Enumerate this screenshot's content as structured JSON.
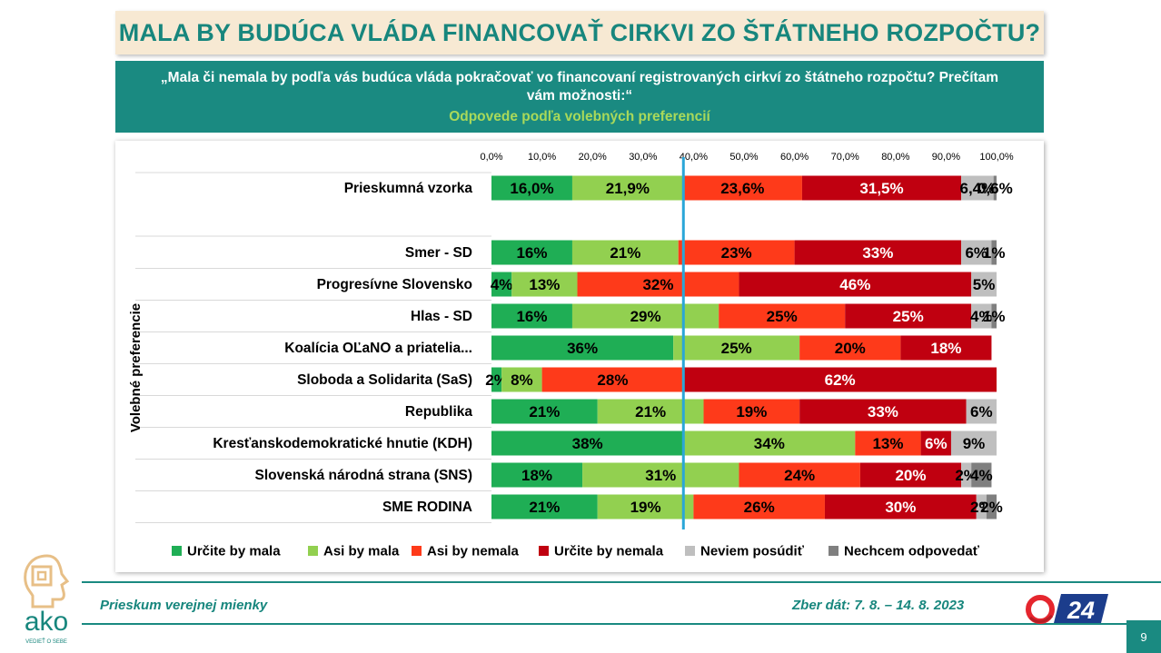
{
  "header": {
    "title": "MALA BY BUDÚCA VLÁDA FINANCOVAŤ CIRKVI ZO ŠTÁTNEHO ROZPOČTU?",
    "question": "„Mala či nemala by podľa vás budúca vláda pokračovať vo financovaní registrovaných cirkví zo štátneho rozpočtu? Prečítam vám možnosti:“",
    "subtitle": "Odpovede podľa volebných preferencií"
  },
  "footer": {
    "left": "Prieskum verejnej mienky",
    "right": "Zber dát: 7. 8. – 14. 8. 2023",
    "page": "9",
    "logo_sub": "VEDIEŤ O SEBE",
    "brand": "ako",
    "channel_number": "24"
  },
  "colors": {
    "accent_teal": "#1a8a81",
    "title_bg": "#f7e9d3",
    "subtitle_green": "#a9d95a",
    "separator_line": "#2aa6d8"
  },
  "chart_data": {
    "type": "bar",
    "orientation": "horizontal",
    "stacked": true,
    "title": "MALA BY BUDÚCA VLÁDA FINANCOVAŤ CIRKVI ZO ŠTÁTNEHO ROZPOČTU?",
    "group_label": "Volebné preferencie",
    "xlim": [
      0,
      100
    ],
    "x_ticks": [
      "0,0%",
      "10,0%",
      "20,0%",
      "30,0%",
      "40,0%",
      "50,0%",
      "60,0%",
      "70,0%",
      "80,0%",
      "90,0%",
      "100,0%"
    ],
    "reference_line_x": 38.0,
    "legend_position": "bottom",
    "series": [
      {
        "name": "Určite by mala",
        "color": "#1fae55"
      },
      {
        "name": "Asi by mala",
        "color": "#92d050"
      },
      {
        "name": "Asi by nemala",
        "color": "#fe3a1a"
      },
      {
        "name": "Určite by nemala",
        "color": "#c00010"
      },
      {
        "name": "Neviem posúdiť",
        "color": "#bfbfbf"
      },
      {
        "name": "Nechcem odpovedať",
        "color": "#7f7f7f"
      }
    ],
    "rows": [
      {
        "label": "Prieskumná vzorka",
        "values": [
          16.0,
          21.9,
          23.6,
          31.5,
          6.4,
          0.6
        ],
        "labels": [
          "16,0%",
          "21,9%",
          "23,6%",
          "31,5%",
          "6,4%",
          "0,6%"
        ]
      },
      {
        "label": "Smer - SD",
        "values": [
          16,
          21,
          23,
          33,
          6,
          1
        ],
        "labels": [
          "16%",
          "21%",
          "23%",
          "33%",
          "6%",
          "1%"
        ]
      },
      {
        "label": "Progresívne Slovensko",
        "values": [
          4,
          13,
          32,
          46,
          5,
          0
        ],
        "labels": [
          "4%",
          "13%",
          "32%",
          "46%",
          "5%",
          ""
        ]
      },
      {
        "label": "Hlas - SD",
        "values": [
          16,
          29,
          25,
          25,
          4,
          1
        ],
        "labels": [
          "16%",
          "29%",
          "25%",
          "25%",
          "4%",
          "1%"
        ]
      },
      {
        "label": "Koalícia OĽaNO a priatelia...",
        "values": [
          36,
          25,
          20,
          18,
          0,
          0
        ],
        "labels": [
          "36%",
          "25%",
          "20%",
          "18%",
          "",
          ""
        ]
      },
      {
        "label": "Sloboda a Solidarita (SaS)",
        "values": [
          2,
          8,
          28,
          62,
          0,
          0
        ],
        "labels": [
          "2%",
          "8%",
          "28%",
          "62%",
          "",
          ""
        ]
      },
      {
        "label": "Republika",
        "values": [
          21,
          21,
          19,
          33,
          6,
          0
        ],
        "labels": [
          "21%",
          "21%",
          "19%",
          "33%",
          "6%",
          ""
        ]
      },
      {
        "label": "Kresťanskodemokratické hnutie (KDH)",
        "values": [
          38,
          34,
          13,
          6,
          9,
          0
        ],
        "labels": [
          "38%",
          "34%",
          "13%",
          "6%",
          "9%",
          ""
        ]
      },
      {
        "label": "Slovenská národná strana (SNS)",
        "values": [
          18,
          31,
          24,
          20,
          2,
          4
        ],
        "labels": [
          "18%",
          "31%",
          "24%",
          "20%",
          "2%",
          "4%"
        ]
      },
      {
        "label": "SME RODINA",
        "values": [
          21,
          19,
          26,
          30,
          2,
          2
        ],
        "labels": [
          "21%",
          "19%",
          "26%",
          "30%",
          "2%",
          "2%"
        ]
      }
    ]
  }
}
